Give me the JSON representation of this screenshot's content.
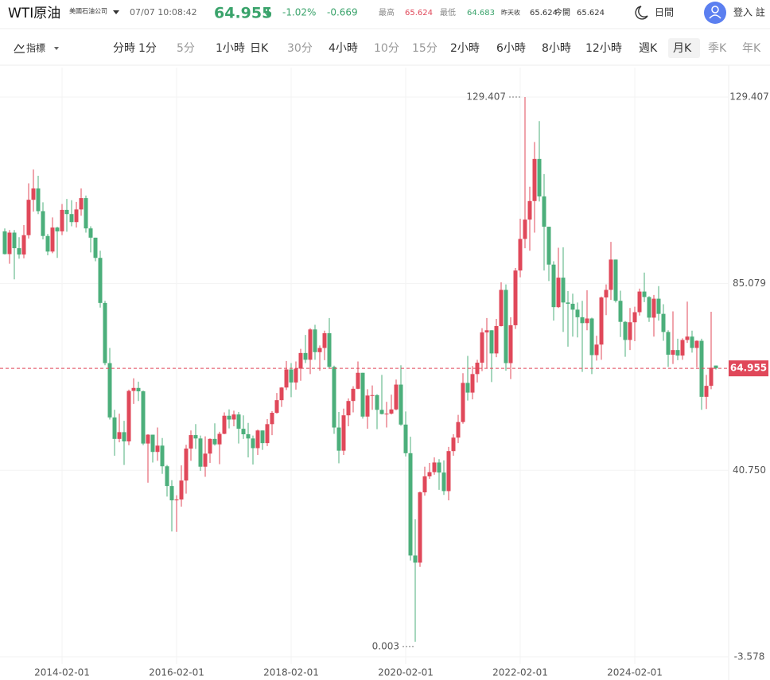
{
  "header": {
    "title": "WTI原油",
    "subtitle": "美國石油公司",
    "time": "07/07 10:08:42",
    "price": "64.955",
    "change_pct": "-1.02%",
    "change": "-0.669",
    "high_label": "最高",
    "high": "65.624",
    "low_label": "最低",
    "low": "64.683",
    "prev_close_label": "昨天收",
    "prev_close": "65.624",
    "open_label": "今開",
    "open": "65.624",
    "theme": "日間",
    "login": "登入 註"
  },
  "toolbar": {
    "indicator": "指標",
    "items": [
      {
        "label": "分時",
        "active": true
      },
      {
        "label": "1分",
        "active": true
      },
      {
        "label": "5分",
        "active": false
      },
      {
        "label": "1小時",
        "active": true
      },
      {
        "label": "日K",
        "active": true
      },
      {
        "label": "30分",
        "active": false
      },
      {
        "label": "4小時",
        "active": true
      },
      {
        "label": "10分",
        "active": false
      },
      {
        "label": "15分",
        "active": false
      },
      {
        "label": "2小時",
        "active": true
      },
      {
        "label": "6小時",
        "active": true
      },
      {
        "label": "8小時",
        "active": true
      },
      {
        "label": "12小時",
        "active": true
      },
      {
        "label": "週K",
        "active": true
      },
      {
        "label": "月K",
        "active": true,
        "selected": true
      },
      {
        "label": "季K",
        "active": false
      },
      {
        "label": "年K",
        "active": false
      }
    ]
  },
  "chart_data": {
    "type": "candlestick",
    "up_color": "#e0485a",
    "down_color": "#4caf7b",
    "ylim": [
      -5.3,
      136.4
    ],
    "yticks": [
      129.407,
      85.079,
      {
        "value": 40.75,
        "label": "40.750"
      },
      -3.578
    ],
    "xticks": [
      "2014-02-01",
      "2016-02-01",
      "2018-02-01",
      "2020-02-01",
      "2022-02-01",
      "2024-02-01"
    ],
    "grid": true,
    "x": [
      "2013-02-01",
      "2013-03-01",
      "2013-04-01",
      "2013-05-01",
      "2013-06-01",
      "2013-07-01",
      "2013-08-01",
      "2013-09-01",
      "2013-10-01",
      "2013-11-01",
      "2013-12-01",
      "2014-01-01",
      "2014-02-01",
      "2014-03-01",
      "2014-04-01",
      "2014-05-01",
      "2014-06-01",
      "2014-07-01",
      "2014-08-01",
      "2014-09-01",
      "2014-10-01",
      "2014-11-01",
      "2014-12-01",
      "2015-01-01",
      "2015-02-01",
      "2015-03-01",
      "2015-04-01",
      "2015-05-01",
      "2015-06-01",
      "2015-07-01",
      "2015-08-01",
      "2015-09-01",
      "2015-10-01",
      "2015-11-01",
      "2015-12-01",
      "2016-01-01",
      "2016-02-01",
      "2016-03-01",
      "2016-04-01",
      "2016-05-01",
      "2016-06-01",
      "2016-07-01",
      "2016-08-01",
      "2016-09-01",
      "2016-10-01",
      "2016-11-01",
      "2016-12-01",
      "2017-01-01",
      "2017-02-01",
      "2017-03-01",
      "2017-04-01",
      "2017-05-01",
      "2017-06-01",
      "2017-07-01",
      "2017-08-01",
      "2017-09-01",
      "2017-10-01",
      "2017-11-01",
      "2017-12-01",
      "2018-01-01",
      "2018-02-01",
      "2018-03-01",
      "2018-04-01",
      "2018-05-01",
      "2018-06-01",
      "2018-07-01",
      "2018-08-01",
      "2018-09-01",
      "2018-10-01",
      "2018-11-01",
      "2018-12-01",
      "2019-01-01",
      "2019-02-01",
      "2019-03-01",
      "2019-04-01",
      "2019-05-01",
      "2019-06-01",
      "2019-07-01",
      "2019-08-01",
      "2019-09-01",
      "2019-10-01",
      "2019-11-01",
      "2019-12-01",
      "2020-01-01",
      "2020-02-01",
      "2020-03-01",
      "2020-04-01",
      "2020-05-01",
      "2020-06-01",
      "2020-07-01",
      "2020-08-01",
      "2020-09-01",
      "2020-10-01",
      "2020-11-01",
      "2020-12-01",
      "2021-01-01",
      "2021-02-01",
      "2021-03-01",
      "2021-04-01",
      "2021-05-01",
      "2021-06-01",
      "2021-07-01",
      "2021-08-01",
      "2021-09-01",
      "2021-10-01",
      "2021-11-01",
      "2021-12-01",
      "2022-01-01",
      "2022-02-01",
      "2022-03-01",
      "2022-04-01",
      "2022-05-01",
      "2022-06-01",
      "2022-07-01",
      "2022-08-01",
      "2022-09-01",
      "2022-10-01",
      "2022-11-01",
      "2022-12-01",
      "2023-01-01",
      "2023-02-01",
      "2023-03-01",
      "2023-04-01",
      "2023-05-01",
      "2023-06-01",
      "2023-07-01",
      "2023-08-01",
      "2023-09-01",
      "2023-10-01",
      "2023-11-01",
      "2023-12-01",
      "2024-01-01",
      "2024-02-01",
      "2024-03-01",
      "2024-04-01",
      "2024-05-01",
      "2024-06-01",
      "2024-07-01",
      "2024-08-01",
      "2024-09-01",
      "2024-10-01",
      "2024-11-01",
      "2024-12-01",
      "2025-01-01",
      "2025-02-01",
      "2025-03-01",
      "2025-04-01",
      "2025-05-01",
      "2025-06-01",
      "2025-07-01"
    ],
    "ohlc": [
      [
        97.5,
        98.2,
        92.0,
        92.1
      ],
      [
        92.1,
        97.8,
        89.8,
        97.2
      ],
      [
        97.2,
        97.8,
        86.1,
        93.5
      ],
      [
        93.5,
        96.1,
        91.0,
        92.0
      ],
      [
        92.0,
        99.0,
        91.1,
        96.6
      ],
      [
        96.6,
        108.9,
        95.8,
        105.0
      ],
      [
        105.0,
        112.2,
        102.2,
        107.7
      ],
      [
        107.7,
        110.7,
        101.6,
        102.3
      ],
      [
        102.3,
        104.4,
        95.6,
        96.4
      ],
      [
        96.4,
        96.9,
        91.8,
        92.7
      ],
      [
        92.7,
        100.8,
        92.3,
        98.4
      ],
      [
        98.4,
        98.6,
        91.2,
        97.5
      ],
      [
        97.5,
        104.0,
        96.6,
        102.6
      ],
      [
        102.6,
        105.2,
        97.4,
        101.6
      ],
      [
        101.6,
        104.9,
        98.7,
        99.7
      ],
      [
        99.7,
        104.5,
        98.4,
        102.7
      ],
      [
        102.7,
        107.7,
        101.2,
        105.4
      ],
      [
        105.4,
        106.0,
        97.2,
        98.2
      ],
      [
        98.2,
        98.7,
        92.5,
        96.0
      ],
      [
        96.0,
        96.0,
        90.4,
        91.2
      ],
      [
        91.2,
        92.9,
        79.4,
        80.5
      ],
      [
        80.5,
        81.0,
        65.7,
        66.2
      ],
      [
        66.2,
        69.8,
        52.8,
        53.3
      ],
      [
        53.3,
        55.1,
        44.2,
        48.2
      ],
      [
        48.2,
        54.2,
        47.4,
        49.8
      ],
      [
        49.8,
        52.5,
        42.0,
        47.6
      ],
      [
        47.6,
        59.9,
        46.7,
        59.6
      ],
      [
        59.6,
        62.6,
        56.5,
        60.3
      ],
      [
        60.3,
        61.8,
        57.2,
        59.5
      ],
      [
        59.5,
        59.7,
        46.7,
        47.1
      ],
      [
        47.1,
        49.3,
        37.8,
        49.2
      ],
      [
        49.2,
        49.2,
        42.6,
        45.1
      ],
      [
        45.1,
        50.9,
        43.0,
        46.6
      ],
      [
        46.6,
        48.4,
        39.9,
        41.7
      ],
      [
        41.7,
        42.0,
        34.5,
        37.0
      ],
      [
        37.0,
        38.4,
        26.2,
        33.6
      ],
      [
        33.6,
        34.8,
        26.1,
        33.8
      ],
      [
        33.8,
        41.9,
        32.1,
        38.3
      ],
      [
        38.3,
        46.8,
        35.2,
        45.9
      ],
      [
        45.9,
        50.2,
        43.0,
        49.1
      ],
      [
        49.1,
        51.7,
        45.8,
        48.3
      ],
      [
        48.3,
        49.0,
        40.6,
        41.6
      ],
      [
        41.6,
        48.8,
        39.2,
        44.7
      ],
      [
        44.7,
        48.3,
        42.5,
        48.2
      ],
      [
        48.2,
        51.9,
        46.6,
        46.9
      ],
      [
        46.9,
        49.9,
        42.2,
        49.4
      ],
      [
        49.4,
        54.5,
        49.3,
        53.7
      ],
      [
        53.7,
        55.2,
        50.7,
        52.8
      ],
      [
        52.8,
        54.9,
        51.2,
        54.0
      ],
      [
        54.0,
        54.6,
        47.1,
        50.6
      ],
      [
        50.6,
        53.8,
        48.2,
        49.3
      ],
      [
        49.3,
        52.0,
        43.8,
        48.3
      ],
      [
        48.3,
        49.0,
        42.1,
        46.0
      ],
      [
        46.0,
        50.4,
        44.4,
        50.2
      ],
      [
        50.2,
        50.2,
        45.6,
        47.2
      ],
      [
        47.2,
        52.9,
        46.5,
        51.7
      ],
      [
        51.7,
        54.8,
        49.1,
        54.4
      ],
      [
        54.4,
        59.1,
        54.2,
        57.4
      ],
      [
        57.4,
        60.5,
        55.8,
        60.4
      ],
      [
        60.4,
        66.7,
        59.8,
        64.7
      ],
      [
        64.7,
        66.2,
        58.1,
        61.6
      ],
      [
        61.6,
        66.6,
        59.9,
        64.9
      ],
      [
        64.9,
        69.6,
        62.0,
        68.6
      ],
      [
        68.6,
        72.9,
        66.2,
        67.0
      ],
      [
        67.0,
        74.5,
        63.6,
        74.2
      ],
      [
        74.2,
        75.3,
        67.0,
        68.8
      ],
      [
        68.8,
        70.4,
        64.4,
        69.8
      ],
      [
        69.8,
        73.9,
        66.9,
        73.3
      ],
      [
        73.3,
        76.9,
        64.9,
        65.3
      ],
      [
        65.3,
        65.6,
        49.4,
        50.9
      ],
      [
        50.9,
        54.6,
        42.4,
        45.4
      ],
      [
        45.4,
        55.4,
        44.4,
        53.8
      ],
      [
        53.8,
        57.8,
        51.2,
        57.2
      ],
      [
        57.2,
        60.7,
        54.5,
        60.1
      ],
      [
        60.1,
        66.6,
        60.0,
        63.9
      ],
      [
        63.9,
        63.9,
        53.0,
        53.5
      ],
      [
        53.5,
        60.0,
        50.6,
        58.5
      ],
      [
        58.5,
        60.9,
        55.1,
        58.6
      ],
      [
        58.6,
        58.8,
        50.5,
        55.1
      ],
      [
        55.1,
        63.4,
        54.0,
        54.1
      ],
      [
        54.1,
        57.0,
        50.9,
        54.2
      ],
      [
        54.2,
        58.7,
        54.0,
        55.2
      ],
      [
        55.2,
        62.3,
        55.0,
        61.1
      ],
      [
        61.1,
        65.7,
        51.3,
        51.6
      ],
      [
        51.6,
        54.7,
        44.0,
        44.8
      ],
      [
        44.8,
        48.7,
        19.3,
        20.5
      ],
      [
        20.5,
        29.1,
        0.003,
        18.8
      ],
      [
        18.8,
        35.7,
        17.8,
        35.5
      ],
      [
        35.5,
        41.6,
        34.7,
        39.3
      ],
      [
        39.3,
        42.5,
        38.7,
        40.3
      ],
      [
        40.3,
        43.8,
        39.7,
        42.6
      ],
      [
        42.6,
        43.4,
        36.1,
        40.2
      ],
      [
        40.2,
        43.1,
        34.9,
        35.8
      ],
      [
        35.8,
        46.3,
        33.6,
        45.3
      ],
      [
        45.3,
        49.3,
        44.2,
        48.5
      ],
      [
        48.5,
        53.9,
        47.2,
        52.2
      ],
      [
        52.2,
        63.8,
        51.8,
        61.5
      ],
      [
        61.5,
        67.9,
        57.3,
        59.2
      ],
      [
        59.2,
        65.5,
        57.6,
        63.6
      ],
      [
        63.6,
        67.0,
        61.6,
        66.3
      ],
      [
        66.3,
        74.5,
        64.3,
        73.5
      ],
      [
        73.5,
        76.9,
        65.0,
        74.0
      ],
      [
        74.0,
        74.0,
        61.7,
        68.5
      ],
      [
        68.5,
        76.7,
        67.6,
        75.0
      ],
      [
        75.0,
        85.4,
        74.9,
        83.6
      ],
      [
        83.6,
        84.9,
        64.4,
        66.2
      ],
      [
        66.2,
        77.1,
        62.4,
        75.2
      ],
      [
        75.2,
        88.8,
        74.3,
        88.2
      ],
      [
        88.2,
        100.5,
        86.6,
        95.7
      ],
      [
        95.7,
        129.407,
        93.5,
        100.3
      ],
      [
        100.3,
        108.1,
        92.9,
        104.7
      ],
      [
        104.7,
        118.7,
        97.2,
        114.7
      ],
      [
        114.7,
        123.7,
        104.6,
        105.8
      ],
      [
        105.8,
        111.1,
        88.2,
        98.6
      ],
      [
        98.6,
        98.6,
        85.7,
        89.6
      ],
      [
        89.6,
        90.4,
        76.3,
        79.5
      ],
      [
        79.5,
        93.6,
        79.3,
        86.5
      ],
      [
        86.5,
        93.7,
        73.6,
        80.6
      ],
      [
        80.6,
        83.3,
        70.1,
        80.3
      ],
      [
        80.3,
        82.7,
        72.5,
        78.9
      ],
      [
        78.9,
        80.6,
        72.3,
        77.1
      ],
      [
        77.1,
        81.0,
        64.1,
        75.7
      ],
      [
        75.7,
        83.5,
        74.0,
        76.8
      ],
      [
        76.8,
        77.0,
        63.6,
        68.1
      ],
      [
        68.1,
        72.7,
        66.8,
        70.6
      ],
      [
        70.6,
        82.0,
        67.0,
        81.8
      ],
      [
        81.8,
        84.9,
        77.6,
        83.6
      ],
      [
        83.6,
        95.0,
        81.2,
        90.8
      ],
      [
        90.8,
        90.8,
        80.6,
        81.0
      ],
      [
        81.0,
        83.4,
        72.4,
        76.0
      ],
      [
        76.0,
        76.2,
        67.7,
        71.7
      ],
      [
        71.7,
        79.3,
        69.3,
        75.9
      ],
      [
        75.9,
        79.6,
        71.4,
        78.3
      ],
      [
        78.3,
        83.9,
        77.5,
        83.2
      ],
      [
        83.2,
        87.7,
        80.7,
        81.9
      ],
      [
        81.9,
        82.1,
        76.0,
        77.0
      ],
      [
        77.0,
        82.4,
        72.5,
        81.5
      ],
      [
        81.5,
        84.5,
        76.3,
        77.9
      ],
      [
        77.9,
        80.2,
        71.5,
        73.6
      ],
      [
        73.6,
        74.0,
        65.3,
        68.2
      ],
      [
        68.2,
        78.5,
        66.0,
        69.3
      ],
      [
        69.3,
        72.0,
        66.9,
        68.0
      ],
      [
        68.0,
        72.1,
        67.0,
        71.7
      ],
      [
        71.7,
        80.8,
        71.0,
        72.5
      ],
      [
        72.5,
        73.9,
        68.7,
        69.8
      ],
      [
        69.8,
        71.6,
        65.2,
        71.5
      ],
      [
        71.5,
        72.0,
        55.1,
        58.2
      ],
      [
        58.2,
        63.4,
        55.3,
        60.8
      ],
      [
        60.8,
        78.4,
        60.0,
        65.1
      ],
      [
        65.624,
        65.624,
        64.683,
        64.955
      ]
    ]
  }
}
